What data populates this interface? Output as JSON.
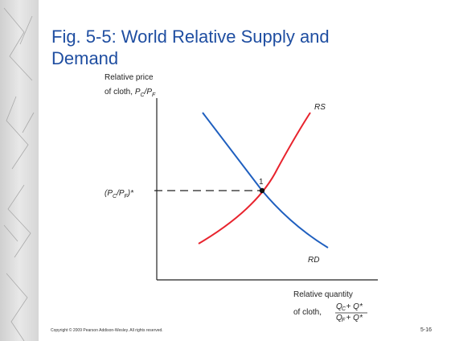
{
  "slide": {
    "title": {
      "line1": "Fig. 5-5: World Relative Supply and",
      "line2": "Demand"
    },
    "y_axis_label": {
      "line1": "Relative price",
      "line2": "of cloth, ",
      "p1": "P",
      "s1": "C",
      "mid": "/P",
      "s2": "F"
    },
    "equilibrium_price": {
      "open": "(P",
      "s1": "C",
      "mid": "/P",
      "s2": "F",
      "close": ")*"
    },
    "supply_label": "RS",
    "demand_label": "RD",
    "point_label": "1",
    "x_axis_label": {
      "line1": "Relative quantity",
      "line2": "of cloth, ",
      "num": "Q  + Q*",
      "den": "Q  + Q*",
      "sc": "C",
      "sf": "F"
    },
    "footer": {
      "copyright": "Copyright © 2009 Pearson Addison-Wesley. All rights reserved.",
      "page": "5-16"
    }
  }
}
